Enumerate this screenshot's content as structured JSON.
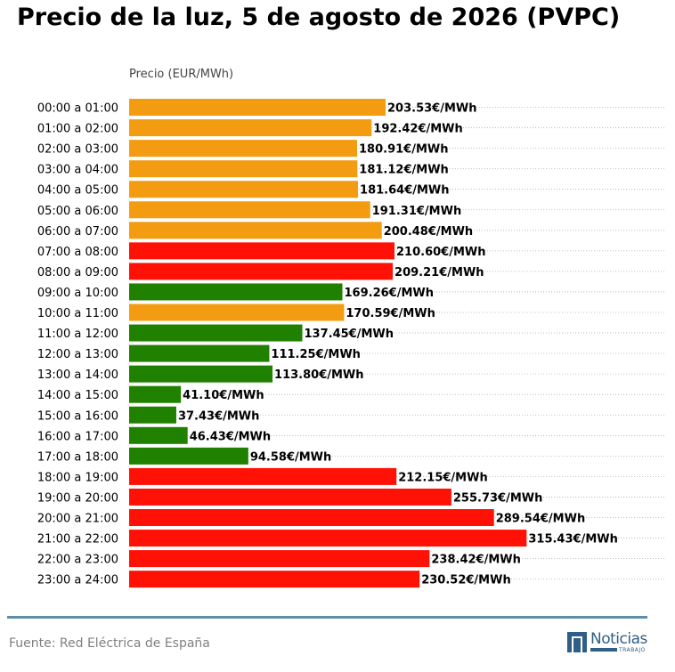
{
  "title": "Precio de la luz, 5 de agosto de 2026 (PVPC)",
  "source": "Fuente: Red Eléctrica de España",
  "logo": {
    "word": "Noticias",
    "sub": "TRABAJO"
  },
  "colors": {
    "high": "#ff1205",
    "mid": "#f39c12",
    "low": "#208000",
    "footer_line": "#5b8fa8",
    "logo": "#2f5f86"
  },
  "chart_data": {
    "type": "bar",
    "orientation": "horizontal",
    "title": "Precio de la luz, 5 de agosto de 2026 (PVPC)",
    "xlabel": "Precio (EUR/MWh)",
    "value_suffix": "€/MWh",
    "xlim": [
      0,
      415
    ],
    "grid": "horizontal dotted",
    "categories": [
      "00:00 a 01:00",
      "01:00 a 02:00",
      "02:00 a 03:00",
      "03:00 a 04:00",
      "04:00 a 05:00",
      "05:00 a 06:00",
      "06:00 a 07:00",
      "07:00 a 08:00",
      "08:00 a 09:00",
      "09:00 a 10:00",
      "10:00 a 11:00",
      "11:00 a 12:00",
      "12:00 a 13:00",
      "13:00 a 14:00",
      "14:00 a 15:00",
      "15:00 a 16:00",
      "16:00 a 17:00",
      "17:00 a 18:00",
      "18:00 a 19:00",
      "19:00 a 20:00",
      "20:00 a 21:00",
      "21:00 a 22:00",
      "22:00 a 23:00",
      "23:00 a 24:00"
    ],
    "values": [
      203.53,
      192.42,
      180.91,
      181.12,
      181.64,
      191.31,
      200.48,
      210.6,
      209.21,
      169.26,
      170.59,
      137.45,
      111.25,
      113.8,
      41.1,
      37.43,
      46.43,
      94.58,
      212.15,
      255.73,
      289.54,
      315.43,
      238.42,
      230.52
    ],
    "value_labels": [
      "203.53€/MWh",
      "192.42€/MWh",
      "180.91€/MWh",
      "181.12€/MWh",
      "181.64€/MWh",
      "191.31€/MWh",
      "200.48€/MWh",
      "210.60€/MWh",
      "209.21€/MWh",
      "169.26€/MWh",
      "170.59€/MWh",
      "137.45€/MWh",
      "111.25€/MWh",
      "113.80€/MWh",
      "41.10€/MWh",
      "37.43€/MWh",
      "46.43€/MWh",
      "94.58€/MWh",
      "212.15€/MWh",
      "255.73€/MWh",
      "289.54€/MWh",
      "315.43€/MWh",
      "238.42€/MWh",
      "230.52€/MWh"
    ],
    "bar_colors": [
      "mid",
      "mid",
      "mid",
      "mid",
      "mid",
      "mid",
      "mid",
      "high",
      "high",
      "low",
      "mid",
      "low",
      "low",
      "low",
      "low",
      "low",
      "low",
      "low",
      "high",
      "high",
      "high",
      "high",
      "high",
      "high"
    ]
  }
}
